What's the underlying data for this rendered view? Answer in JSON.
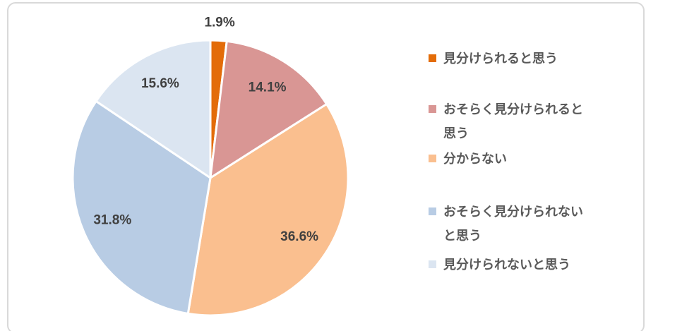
{
  "chart_data": {
    "type": "pie",
    "title": "",
    "units": "%",
    "start_angle_deg": 0,
    "direction": "clockwise",
    "legend_position": "right",
    "categories": [
      "見分けられると思う",
      "おそらく見分けられると思う",
      "分からない",
      "おそらく見分けられないと思う",
      "見分けられないと思う"
    ],
    "values": [
      1.9,
      14.1,
      36.6,
      31.8,
      15.6
    ],
    "labels": [
      "1.9%",
      "14.1%",
      "36.6%",
      "31.8%",
      "15.6%"
    ],
    "colors": [
      "#E36C09",
      "#D99694",
      "#FABF8F",
      "#B8CCE4",
      "#DBE5F1"
    ]
  },
  "legend": {
    "items": [
      {
        "label": "見分けられると思う",
        "lines": [
          "見分けられると思う"
        ],
        "color": "#E36C09"
      },
      {
        "label": "おそらく見分けられると思う",
        "lines": [
          "おそらく見分けられると",
          "思う"
        ],
        "color": "#D99694"
      },
      {
        "label": "分からない",
        "lines": [
          "分からない"
        ],
        "color": "#FABF8F"
      },
      {
        "label": "おそらく見分けられないと思う",
        "lines": [
          "おそらく見分けられない",
          "と思う"
        ],
        "color": "#B8CCE4"
      },
      {
        "label": "見分けられないと思う",
        "lines": [
          "見分けられないと思う"
        ],
        "color": "#DBE5F1"
      }
    ]
  },
  "styles": {
    "data_label_color": "#404040",
    "legend_text_color": "#595959",
    "frame_border_color": "#D9D9D9",
    "slice_separator_color": "#FFFFFF",
    "background": "#FFFFFF"
  }
}
